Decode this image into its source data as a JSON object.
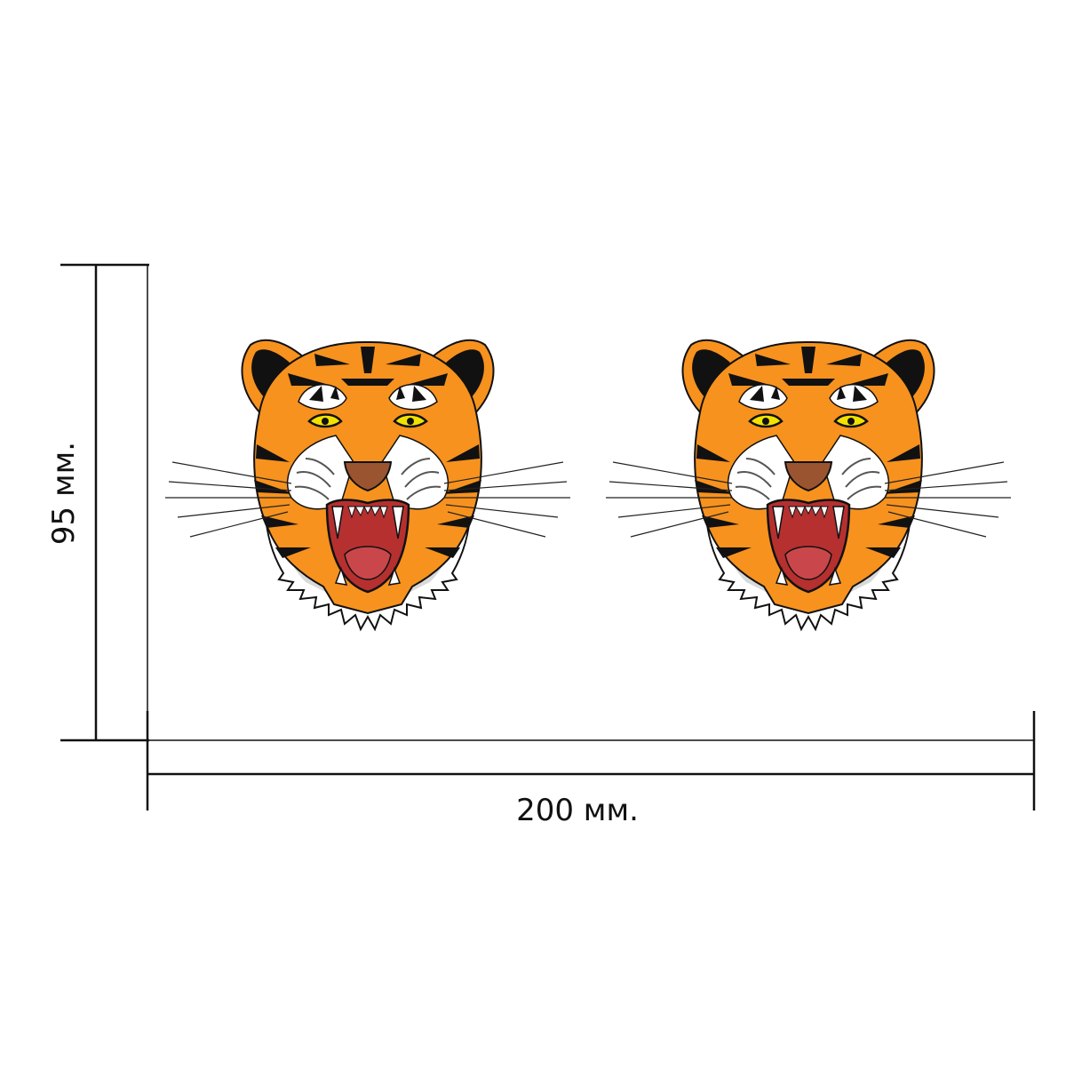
{
  "dimensions": {
    "height_label": "95 мм.",
    "width_label": "200 мм."
  },
  "sticker": {
    "count": 2,
    "subject": "tiger-head",
    "colors": {
      "fur": "#f7921e",
      "fur_dark": "#e07010",
      "stripe": "#111111",
      "white": "#ffffff",
      "shade": "#d9d9d9",
      "eye": "#f2e200",
      "nose": "#9a5530",
      "mouth": "#b5302f",
      "tongue": "#c9474a"
    }
  },
  "lines": {
    "color": "#111111"
  }
}
